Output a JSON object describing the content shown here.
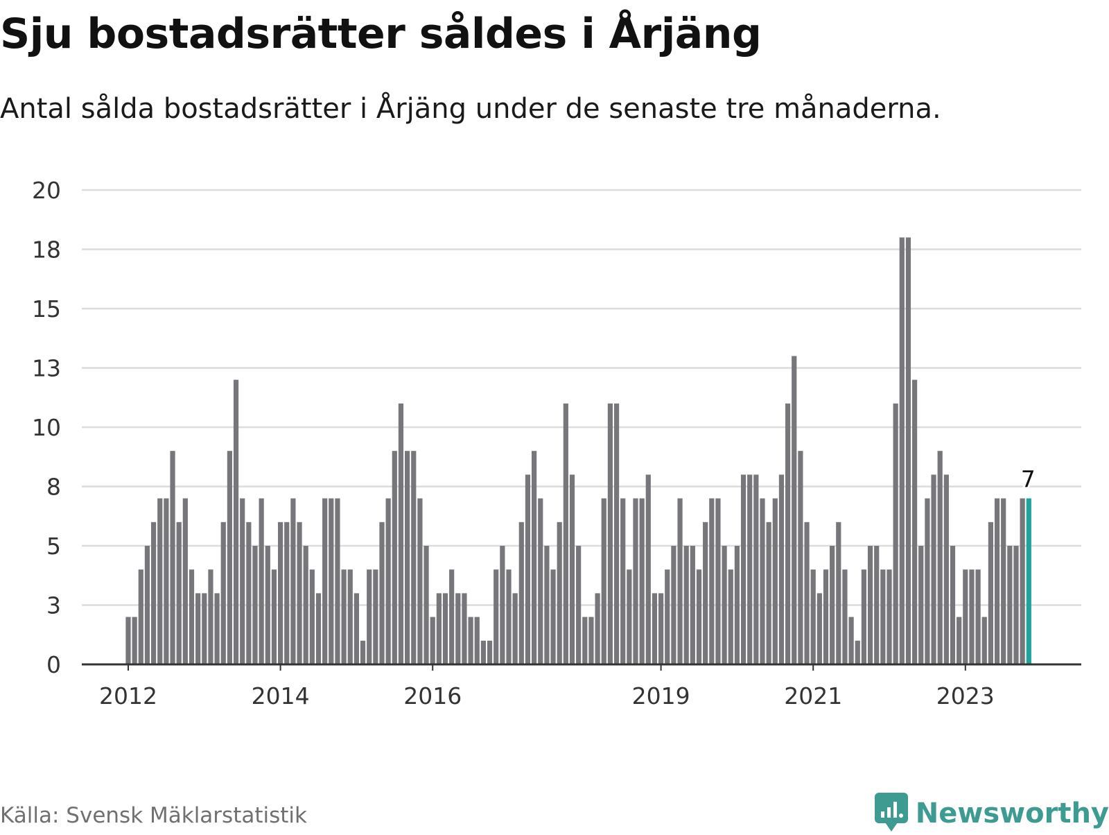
{
  "header": {
    "title": "Sju bostadsrätter såldes i Årjäng",
    "subtitle": "Antal sålda bostadsrätter i Årjäng under de senaste tre månaderna."
  },
  "footer": {
    "source": "Källa: Svensk Mäklarstatistik",
    "brand": "Newsworthy",
    "brand_icon": "newsworthy-logo-icon"
  },
  "colors": {
    "bar": "#76767b",
    "highlight": "#1fa39a",
    "grid": "#dcdcdc",
    "axis": "#333333",
    "brand": "#3d9b91"
  },
  "chart_data": {
    "type": "bar",
    "title": "Sju bostadsrätter såldes i Årjäng",
    "ylim": [
      0,
      20
    ],
    "y_ticks": [
      {
        "value": 0,
        "label": "0"
      },
      {
        "value": 2.5,
        "label": "3"
      },
      {
        "value": 5,
        "label": "5"
      },
      {
        "value": 7.5,
        "label": "8"
      },
      {
        "value": 10,
        "label": "10"
      },
      {
        "value": 12.5,
        "label": "13"
      },
      {
        "value": 15,
        "label": "15"
      },
      {
        "value": 17.5,
        "label": "18"
      },
      {
        "value": 20,
        "label": "20"
      }
    ],
    "x_ticks": [
      {
        "index": 0,
        "label": "2012"
      },
      {
        "index": 24,
        "label": "2014"
      },
      {
        "index": 48,
        "label": "2016"
      },
      {
        "index": 84,
        "label": "2019"
      },
      {
        "index": 108,
        "label": "2021"
      },
      {
        "index": 132,
        "label": "2023"
      }
    ],
    "grid": true,
    "values": [
      2,
      2,
      4,
      5,
      6,
      7,
      7,
      9,
      6,
      7,
      4,
      3,
      3,
      4,
      3,
      6,
      9,
      12,
      7,
      6,
      5,
      7,
      5,
      4,
      6,
      6,
      7,
      6,
      5,
      4,
      3,
      7,
      7,
      7,
      4,
      4,
      3,
      1,
      4,
      4,
      6,
      7,
      9,
      11,
      9,
      9,
      7,
      5,
      2,
      3,
      3,
      4,
      3,
      3,
      2,
      2,
      1,
      1,
      4,
      5,
      4,
      3,
      6,
      8,
      9,
      7,
      5,
      4,
      6,
      11,
      8,
      5,
      2,
      2,
      3,
      7,
      11,
      11,
      7,
      4,
      7,
      7,
      8,
      3,
      3,
      4,
      5,
      7,
      5,
      5,
      4,
      6,
      7,
      7,
      5,
      4,
      5,
      8,
      8,
      8,
      7,
      6,
      7,
      8,
      11,
      13,
      9,
      6,
      4,
      3,
      4,
      5,
      6,
      4,
      2,
      1,
      4,
      5,
      5,
      4,
      4,
      11,
      18,
      18,
      12,
      5,
      7,
      8,
      9,
      8,
      5,
      2,
      4,
      4,
      4,
      2,
      6,
      7,
      7,
      5,
      5,
      7,
      7
    ],
    "highlight_index": 142,
    "highlight_label": "7"
  }
}
